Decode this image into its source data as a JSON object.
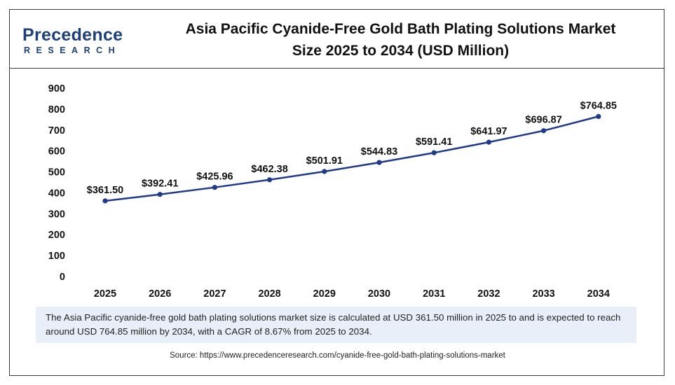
{
  "brand": {
    "name_top": "Precedence",
    "name_bottom": "RESEARCH"
  },
  "title_line1": "Asia Pacific Cyanide-Free Gold Bath Plating Solutions Market",
  "title_line2": "Size 2025 to 2034 (USD Million)",
  "description": "The Asia Pacific cyanide-free gold bath plating solutions market size is calculated at USD 361.50 million in 2025 to and is expected to reach around USD 764.85 million by 2034, with a CAGR of 8.67% from 2025 to 2034.",
  "source": "Source: https://www.precedenceresearch.com/cyanide-free-gold-bath-plating-solutions-market",
  "colors": {
    "line": "#1f3a8a",
    "brand": "#1d3f7a",
    "note_bg": "#e8eff8"
  },
  "chart_data": {
    "type": "line",
    "title": "Asia Pacific Cyanide-Free Gold Bath Plating Solutions Market Size 2025 to 2034 (USD Million)",
    "categories": [
      "2025",
      "2026",
      "2027",
      "2028",
      "2029",
      "2030",
      "2031",
      "2032",
      "2033",
      "2034"
    ],
    "values": [
      361.5,
      392.41,
      425.96,
      462.38,
      501.91,
      544.83,
      591.41,
      641.97,
      696.87,
      764.85
    ],
    "data_labels": [
      "$361.50",
      "$392.41",
      "$425.96",
      "$462.38",
      "$501.91",
      "$544.83",
      "$591.41",
      "$641.97",
      "$696.87",
      "$764.85"
    ],
    "y_ticks": [
      "0",
      "100",
      "200",
      "300",
      "400",
      "500",
      "600",
      "700",
      "800",
      "900"
    ],
    "ylim": [
      0,
      900
    ],
    "xlabel": "",
    "ylabel": "",
    "grid": false,
    "legend": "none"
  }
}
